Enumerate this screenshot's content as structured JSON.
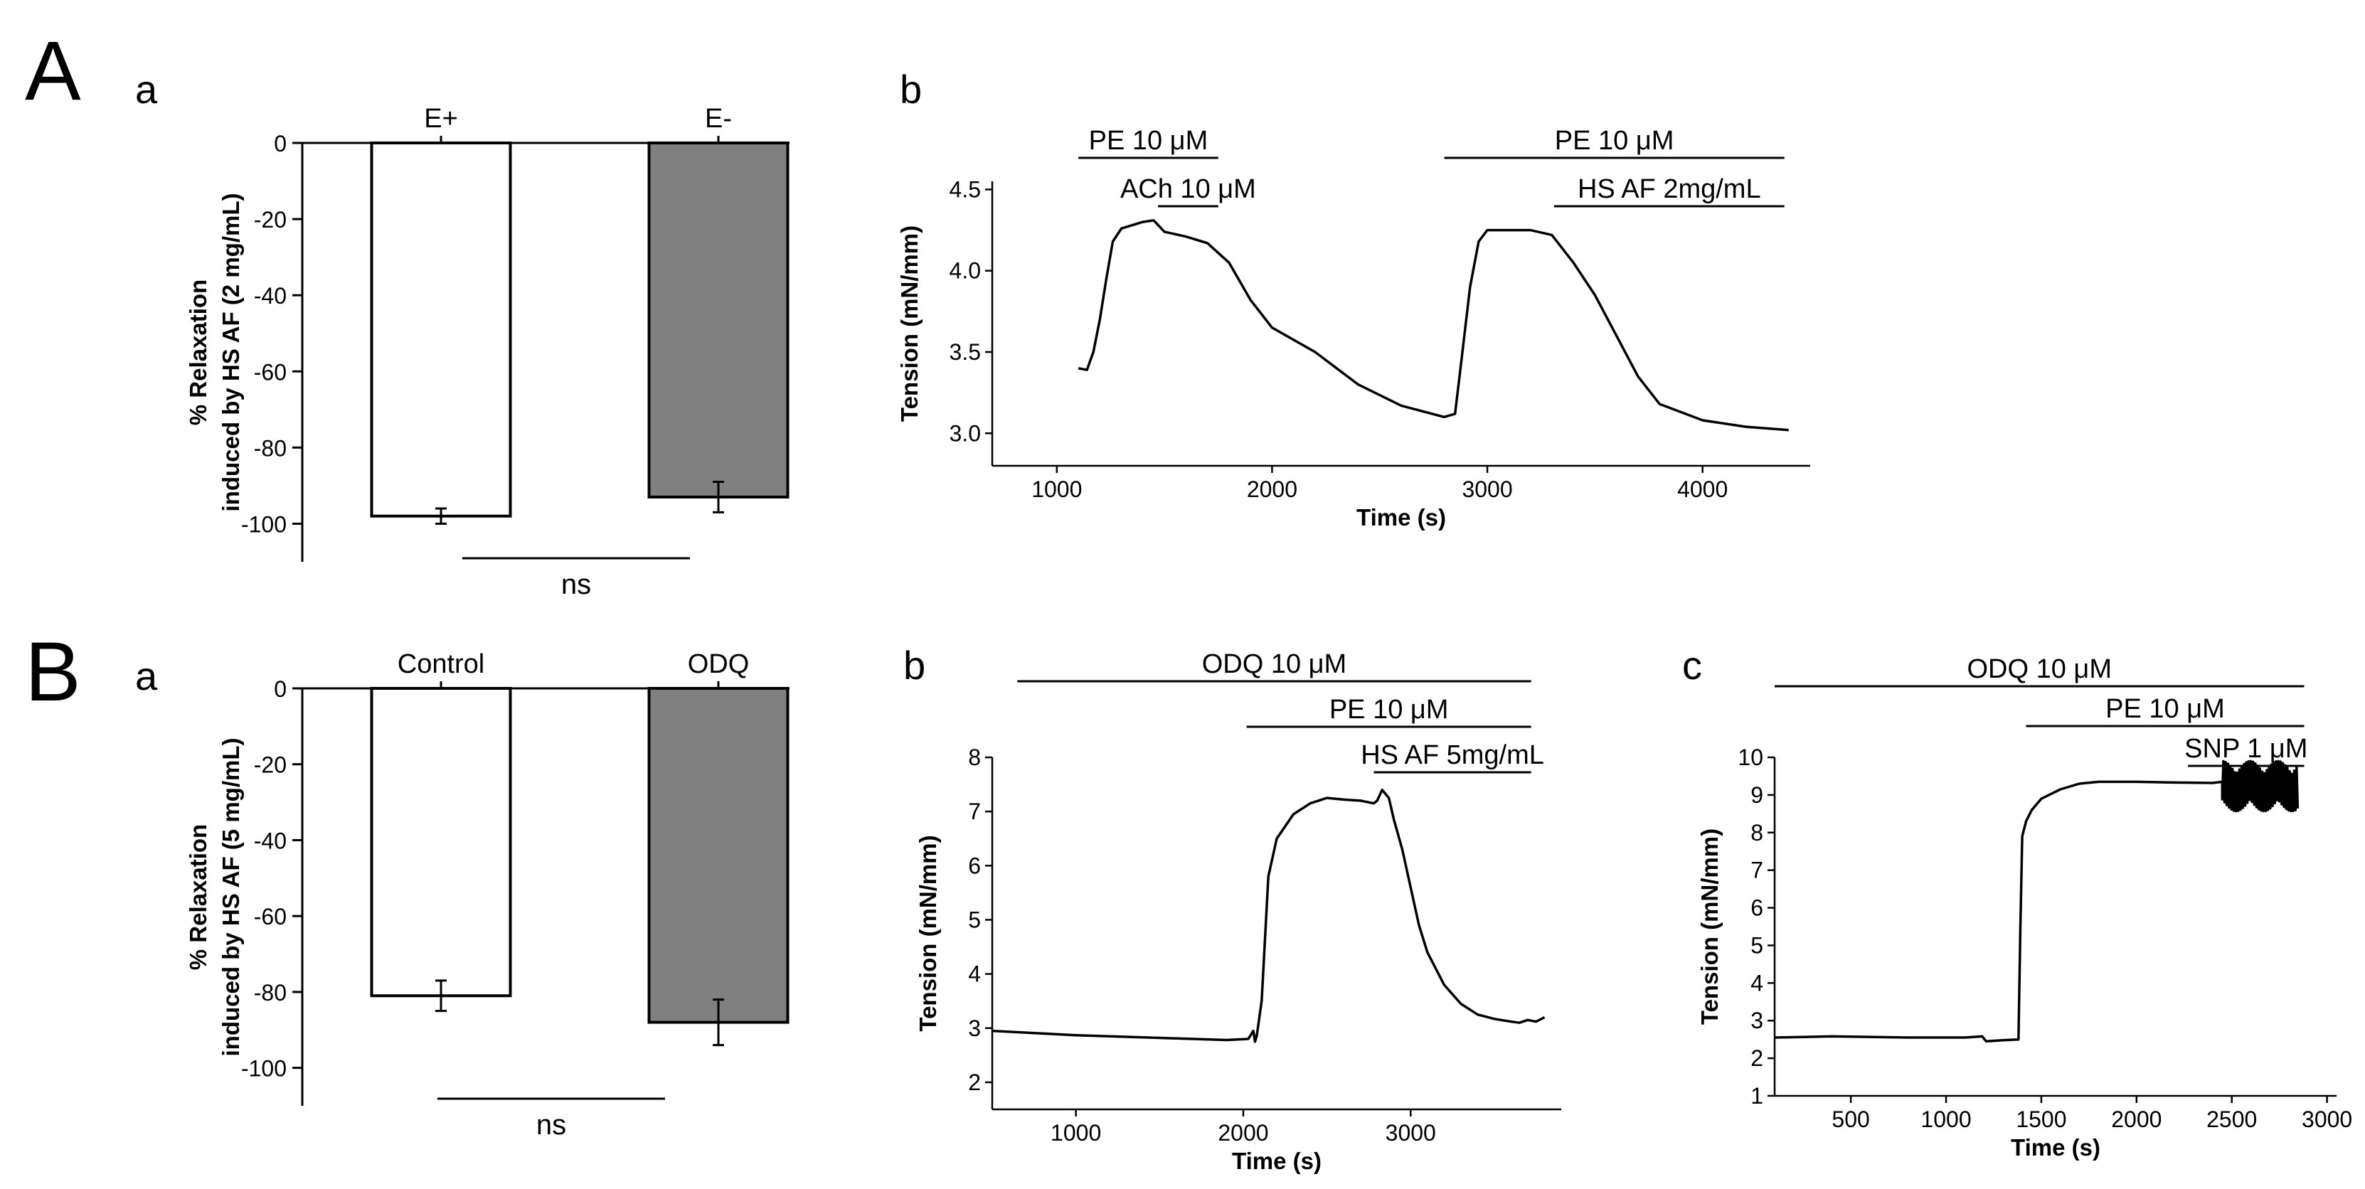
{
  "panel_labels": {
    "A": "A",
    "B": "B",
    "Aa": "a",
    "Ab": "b",
    "Ba": "a",
    "Bb": "b",
    "Bc": "c"
  },
  "chart_data": [
    {
      "id": "Aa",
      "type": "bar",
      "categories": [
        "E+",
        "E-"
      ],
      "values": [
        -98,
        -93
      ],
      "errors": [
        2,
        4
      ],
      "colors": [
        "#ffffff",
        "#808080"
      ],
      "ylabel_lines": [
        "% Relaxation",
        "induced by HS AF (2 mg/mL)"
      ],
      "ylim": [
        -110,
        0
      ],
      "yticks": [
        0,
        -20,
        -40,
        -60,
        -80,
        -100
      ],
      "significance": "ns"
    },
    {
      "id": "Ab",
      "type": "line",
      "xlabel": "Time (s)",
      "ylabel": "Tension (mN/mm)",
      "xlim": [
        700,
        4500
      ],
      "ylim": [
        2.8,
        4.55
      ],
      "xticks": [
        1000,
        2000,
        3000,
        4000
      ],
      "yticks": [
        3.0,
        3.5,
        4.0,
        4.5
      ],
      "ytick_labels": [
        "3.0",
        "3.5",
        "4.0",
        "4.5"
      ],
      "series": [
        {
          "name": "Tension",
          "x": [
            1100,
            1140,
            1170,
            1200,
            1230,
            1260,
            1300,
            1350,
            1400,
            1450,
            1500,
            1600,
            1700,
            1800,
            1900,
            2000,
            2200,
            2400,
            2600,
            2800,
            2850,
            2880,
            2920,
            2960,
            3000,
            3100,
            3200,
            3300,
            3400,
            3500,
            3600,
            3700,
            3800,
            4000,
            4200,
            4400
          ],
          "y": [
            3.4,
            3.39,
            3.5,
            3.7,
            3.95,
            4.18,
            4.26,
            4.28,
            4.3,
            4.31,
            4.24,
            4.21,
            4.17,
            4.05,
            3.82,
            3.65,
            3.5,
            3.3,
            3.17,
            3.1,
            3.12,
            3.45,
            3.9,
            4.18,
            4.25,
            4.25,
            4.25,
            4.22,
            4.05,
            3.85,
            3.6,
            3.35,
            3.18,
            3.08,
            3.04,
            3.02
          ]
        }
      ],
      "bars": [
        {
          "label": "PE 10 μM",
          "start": 1100,
          "end": 1750,
          "level": 0
        },
        {
          "label": "ACh 10 μM",
          "start": 1470,
          "end": 1750,
          "level": 1
        },
        {
          "label": "PE 10 μM",
          "start": 2800,
          "end": 4380,
          "level": 0
        },
        {
          "label": "HS AF 2mg/mL",
          "start": 3310,
          "end": 4380,
          "level": 1
        }
      ]
    },
    {
      "id": "Ba",
      "type": "bar",
      "categories": [
        "Control",
        "ODQ"
      ],
      "values": [
        -81,
        -88
      ],
      "errors": [
        4,
        6
      ],
      "colors": [
        "#ffffff",
        "#808080"
      ],
      "ylabel_lines": [
        "% Relaxation",
        "induced by HS AF (5 mg/mL)"
      ],
      "ylim": [
        -110,
        0
      ],
      "yticks": [
        0,
        -20,
        -40,
        -60,
        -80,
        -100
      ],
      "significance": "ns"
    },
    {
      "id": "Bb",
      "type": "line",
      "xlabel": "Time (s)",
      "ylabel": "Tension (mN/mm)",
      "xlim": [
        500,
        3900
      ],
      "ylim": [
        1.5,
        8.0
      ],
      "xticks": [
        1000,
        2000,
        3000
      ],
      "yticks": [
        2,
        3,
        4,
        5,
        6,
        7,
        8
      ],
      "ytick_labels": [
        "2",
        "3",
        "4",
        "5",
        "6",
        "7",
        "8"
      ],
      "series": [
        {
          "name": "Tension",
          "x": [
            500,
            1000,
            1500,
            1900,
            2030,
            2060,
            2070,
            2080,
            2110,
            2150,
            2200,
            2300,
            2400,
            2500,
            2600,
            2700,
            2780,
            2800,
            2830,
            2870,
            2900,
            2950,
            3000,
            3050,
            3100,
            3200,
            3300,
            3400,
            3500,
            3600,
            3650,
            3700,
            3750,
            3800
          ],
          "y": [
            2.95,
            2.87,
            2.82,
            2.78,
            2.8,
            2.95,
            2.75,
            2.85,
            3.5,
            5.8,
            6.5,
            6.95,
            7.15,
            7.25,
            7.22,
            7.2,
            7.15,
            7.2,
            7.4,
            7.25,
            6.85,
            6.3,
            5.6,
            4.9,
            4.4,
            3.8,
            3.45,
            3.25,
            3.17,
            3.12,
            3.1,
            3.15,
            3.12,
            3.2
          ]
        }
      ],
      "bars": [
        {
          "label": "ODQ 10 μM",
          "start": 650,
          "end": 3720,
          "level": 0
        },
        {
          "label": "PE 10 μM",
          "start": 2020,
          "end": 3720,
          "level": 1
        },
        {
          "label": "HS AF 5mg/mL",
          "start": 2780,
          "end": 3720,
          "level": 2
        }
      ]
    },
    {
      "id": "Bc",
      "type": "line",
      "xlabel": "Time (s)",
      "ylabel": "Tension (mN/mm)",
      "xlim": [
        100,
        3050
      ],
      "ylim": [
        1,
        10
      ],
      "xticks": [
        500,
        1000,
        1500,
        2000,
        2500,
        3000
      ],
      "yticks": [
        1,
        2,
        3,
        4,
        5,
        6,
        7,
        8,
        9,
        10
      ],
      "ytick_labels": [
        "1",
        "2",
        "3",
        "4",
        "5",
        "6",
        "7",
        "8",
        "9",
        "10"
      ],
      "series": [
        {
          "name": "Tension",
          "x": [
            100,
            400,
            800,
            1100,
            1190,
            1210,
            1300,
            1380,
            1390,
            1400,
            1420,
            1450,
            1500,
            1600,
            1700,
            1800,
            2000,
            2200,
            2400,
            2450
          ],
          "y": [
            2.55,
            2.58,
            2.55,
            2.55,
            2.58,
            2.45,
            2.48,
            2.5,
            5.5,
            7.9,
            8.3,
            8.6,
            8.9,
            9.15,
            9.3,
            9.35,
            9.35,
            9.33,
            9.32,
            9.35
          ]
        }
      ],
      "noise": {
        "start": 2450,
        "end": 2850,
        "center": 9.2,
        "amplitude": 0.7
      },
      "bars": [
        {
          "label": "ODQ 10 μM",
          "start": 100,
          "end": 2880,
          "level": 0
        },
        {
          "label": "PE 10 μM",
          "start": 1420,
          "end": 2880,
          "level": 1
        },
        {
          "label": "SNP 1 μM",
          "start": 2270,
          "end": 2880,
          "level": 2
        }
      ]
    }
  ]
}
